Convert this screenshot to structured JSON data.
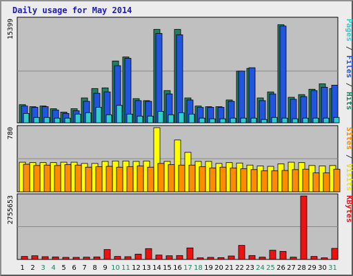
{
  "title": "Daily usage for May 2014",
  "chart_data": {
    "type": "bar",
    "categories": [
      "1",
      "2",
      "3",
      "4",
      "5",
      "6",
      "7",
      "8",
      "9",
      "10",
      "11",
      "12",
      "13",
      "14",
      "15",
      "16",
      "17",
      "18",
      "19",
      "20",
      "21",
      "22",
      "23",
      "24",
      "25",
      "26",
      "27",
      "28",
      "29",
      "30",
      "31"
    ],
    "weekend_days": [
      "3",
      "4",
      "10",
      "11",
      "17",
      "18",
      "24",
      "25",
      "31"
    ],
    "panels": [
      {
        "name": "traffic",
        "max_label": "15399",
        "ymax": 15399,
        "right_labels": [
          {
            "text": "Pages",
            "color": "#33cccc"
          },
          {
            "text": " / ",
            "color": "#333333"
          },
          {
            "text": "Files",
            "color": "#2255dd"
          },
          {
            "text": " / ",
            "color": "#333333"
          },
          {
            "text": "Hits",
            "color": "#208060"
          }
        ],
        "series": [
          {
            "name": "Hits",
            "color": "#208060",
            "values": [
              2700,
              2400,
              2500,
              2100,
              1600,
              2100,
              3700,
              5100,
              5200,
              9200,
              9800,
              3600,
              3300,
              13900,
              4800,
              13900,
              3700,
              2500,
              2400,
              2400,
              3400,
              7700,
              8100,
              3700,
              4600,
              14600,
              3800,
              4200,
              5000,
              5800,
              5100
            ]
          },
          {
            "name": "Files",
            "color": "#2255dd",
            "values": [
              2500,
              2300,
              2400,
              1900,
              1400,
              1800,
              3200,
              4400,
              4600,
              8500,
              9600,
              3300,
              3200,
              13300,
              4300,
              13100,
              3400,
              2300,
              2300,
              2300,
              3200,
              7700,
              8200,
              3300,
              4300,
              14400,
              3500,
              3900,
              4800,
              5300,
              5600
            ]
          },
          {
            "name": "Pages",
            "color": "#33cccc",
            "values": [
              1400,
              800,
              800,
              700,
              700,
              1300,
              1500,
              2300,
              1200,
              2600,
              1300,
              1000,
              1000,
              1700,
              1200,
              1500,
              1300,
              700,
              600,
              600,
              700,
              700,
              700,
              500,
              800,
              700,
              600,
              700,
              700,
              700,
              800
            ]
          }
        ]
      },
      {
        "name": "visitors",
        "max_label": "780",
        "ymax": 780,
        "right_labels": [
          {
            "text": "Sites",
            "color": "#ff8c00"
          },
          {
            "text": " / ",
            "color": "#333333"
          },
          {
            "text": "Visits",
            "color": "#e8e800"
          }
        ],
        "series": [
          {
            "name": "Visits",
            "color": "#ffff00",
            "values": [
              360,
              355,
              355,
              355,
              360,
              360,
              345,
              345,
              370,
              375,
              375,
              370,
              375,
              780,
              370,
              630,
              480,
              370,
              370,
              345,
              355,
              350,
              325,
              315,
              310,
              340,
              360,
              355,
              320,
              315,
              320
            ]
          },
          {
            "name": "Sites",
            "color": "#ff8c00",
            "values": [
              335,
              320,
              325,
              320,
              330,
              325,
              300,
              305,
              310,
              300,
              305,
              315,
              300,
              345,
              330,
              325,
              325,
              305,
              290,
              300,
              290,
              280,
              270,
              255,
              255,
              260,
              270,
              275,
              230,
              230,
              275
            ]
          }
        ]
      },
      {
        "name": "kbytes",
        "max_label": "2755653",
        "ymax": 2755653,
        "right_labels": [
          {
            "text": "KBytes",
            "color": "#ee1111"
          }
        ],
        "series": [
          {
            "name": "KBytes",
            "color": "#ee1111",
            "values": [
              130000,
              160000,
              120000,
              110000,
              90000,
              90000,
              100000,
              110000,
              430000,
              130000,
              120000,
              230000,
              470000,
              190000,
              160000,
              170000,
              500000,
              70000,
              90000,
              80000,
              150000,
              610000,
              170000,
              100000,
              400000,
              350000,
              100000,
              2755653,
              130000,
              70000,
              480000
            ]
          }
        ]
      }
    ]
  }
}
